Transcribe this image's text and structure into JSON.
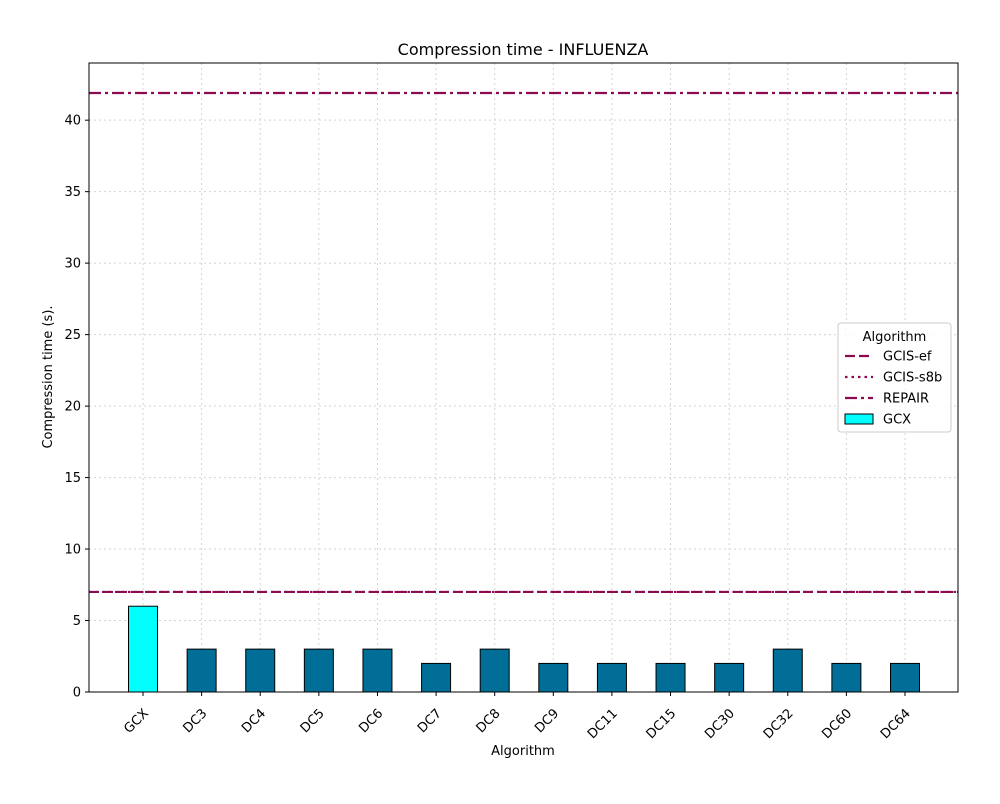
{
  "chart_data": {
    "type": "bar",
    "title": "Compression time -  INFLUENZA",
    "xlabel": "Algorithm",
    "ylabel": "Compression time (s).",
    "categories": [
      "GCX",
      "DC3",
      "DC4",
      "DC5",
      "DC6",
      "DC7",
      "DC8",
      "DC9",
      "DC11",
      "DC15",
      "DC30",
      "DC32",
      "DC60",
      "DC64"
    ],
    "values": [
      6,
      3,
      3,
      3,
      3,
      2,
      3,
      2,
      2,
      2,
      2,
      3,
      2,
      2
    ],
    "ylim": [
      0,
      44
    ],
    "yticks": [
      0,
      5,
      10,
      15,
      20,
      25,
      30,
      35,
      40
    ],
    "grid": true,
    "bar_colors": {
      "highlight": "#00ffff",
      "default": "#006e96"
    },
    "highlight_category": "GCX",
    "reference_lines": [
      {
        "name": "GCIS-ef",
        "value": 7,
        "style": "dashed",
        "color": "#8b0a50"
      },
      {
        "name": "GCIS-s8b",
        "value": 7,
        "style": "dotted",
        "color": "#8b0a50"
      },
      {
        "name": "REPAIR",
        "value": 41.9,
        "style": "dashdot",
        "color": "#8b0a50"
      }
    ],
    "legend": {
      "title": "Algorithm",
      "placement": "center-right",
      "entries": [
        {
          "label": "GCIS-ef",
          "kind": "line",
          "style": "dashed",
          "color": "#8b0a50"
        },
        {
          "label": "GCIS-s8b",
          "kind": "line",
          "style": "dotted",
          "color": "#8b0a50"
        },
        {
          "label": "REPAIR",
          "kind": "line",
          "style": "dashdot",
          "color": "#8b0a50"
        },
        {
          "label": "GCX",
          "kind": "patch",
          "color": "#00ffff"
        }
      ]
    }
  }
}
